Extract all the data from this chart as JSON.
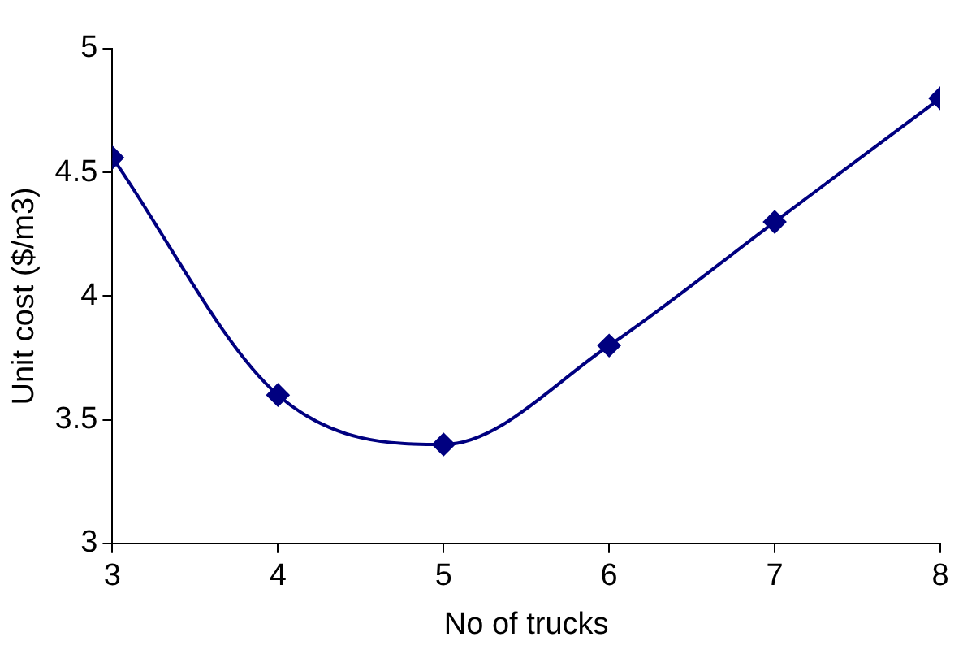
{
  "chart_data": {
    "type": "line",
    "xlabel": "No of trucks",
    "ylabel": "Unit cost ($/m3)",
    "x": [
      3,
      4,
      5,
      6,
      7,
      8
    ],
    "series": [
      {
        "color": "#000080",
        "values": [
          4.56,
          3.6,
          3.4,
          3.8,
          4.3,
          4.8
        ]
      }
    ],
    "xlim": [
      3,
      8
    ],
    "xticks": [
      3,
      4,
      5,
      6,
      7,
      8
    ],
    "ylim": [
      3,
      5
    ],
    "yticks": [
      3,
      3.5,
      4,
      4.5,
      5
    ],
    "grid": false,
    "legend": false,
    "marker": "diamond",
    "line_style": "solid"
  }
}
